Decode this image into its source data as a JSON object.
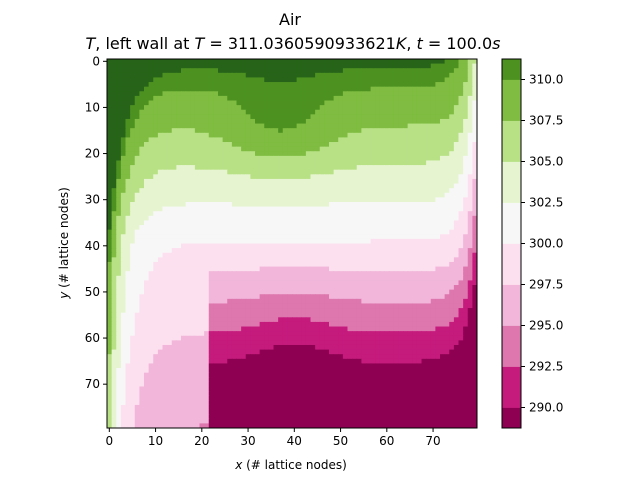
{
  "chart_data": {
    "type": "heatmap",
    "title": "Air",
    "subtitle_parts": {
      "var": "T",
      "mid": ", left wall at ",
      "lhs": "T",
      "eq": " = 311.0360590933621",
      "unit": "K",
      "sep": ", ",
      "tlhs": "t",
      "teq": " = 100.0",
      "tunit": "s"
    },
    "xlabel_var": "x",
    "xlabel_rest": " (# lattice nodes)",
    "ylabel_var": "y",
    "ylabel_rest": " (# lattice nodes)",
    "grid_size": {
      "nx": 80,
      "ny": 80
    },
    "xlim": [
      -0.5,
      79.5
    ],
    "ylim": [
      79.5,
      -0.5
    ],
    "x_ticks": [
      0,
      10,
      20,
      30,
      40,
      50,
      60,
      70
    ],
    "y_ticks": [
      0,
      10,
      20,
      30,
      40,
      50,
      60,
      70
    ],
    "colorbar": {
      "levels": [
        288.75,
        290.0,
        292.5,
        295.0,
        297.5,
        300.0,
        302.5,
        305.0,
        307.5,
        310.0,
        311.25
      ],
      "colors": [
        "#8e0152",
        "#c51b7d",
        "#de77ae",
        "#f1b6da",
        "#fde0ef",
        "#f7f7f7",
        "#e6f5d0",
        "#b8e186",
        "#7fbc41",
        "#4d9221",
        "#276419"
      ],
      "tick_values": [
        290.0,
        292.5,
        295.0,
        297.5,
        300.0,
        302.5,
        305.0,
        307.5,
        310.0
      ],
      "tick_labels": [
        "290.0",
        "292.5",
        "295.0",
        "297.5",
        "300.0",
        "302.5",
        "305.0",
        "307.5",
        "310.0"
      ]
    },
    "field": {
      "description_of_model": "temperature field, hot left wall, cold right wall, warm air at top, cold air at bottom",
      "left_wall_T": 311.036,
      "right_wall_T": 289.0,
      "center_T": 300.0
    }
  }
}
